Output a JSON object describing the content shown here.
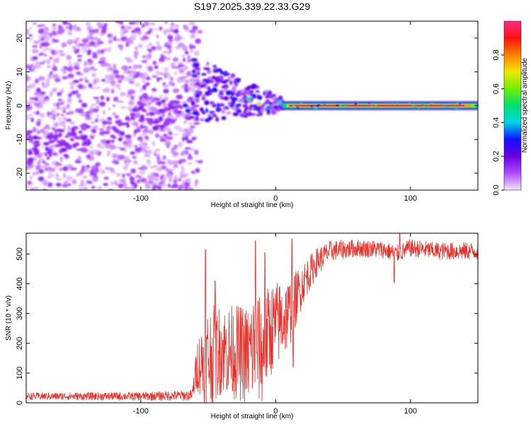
{
  "title": "S197.2025.339.22.33.G29",
  "chart_data": [
    {
      "type": "heatmap",
      "name": "spectrogram",
      "xlabel": "Height of straight line (km)",
      "ylabel": "Frequency (Hz)",
      "xlim": [
        -185,
        150
      ],
      "ylim": [
        -25,
        25
      ],
      "xticks": [
        -100,
        0,
        100
      ],
      "xtick_labels": [
        "-100",
        "0",
        "100"
      ],
      "yticks": [
        -20,
        -10,
        0,
        10,
        20
      ],
      "ytick_labels": [
        "-20",
        "-10",
        "0",
        "10",
        "20"
      ],
      "colorbar": {
        "label": "Normalized spectral amplitude",
        "range": [
          0,
          1
        ],
        "ticks": [
          0.0,
          0.2,
          0.4,
          0.6,
          0.8
        ],
        "tick_labels": [
          "0.0",
          "0.2",
          "0.4",
          "0.6",
          "0.8"
        ],
        "colors": [
          "#f2e6ff",
          "#b04cff",
          "#6a00e0",
          "#1010ff",
          "#00d6e6",
          "#00e070",
          "#6ef000",
          "#f0e800",
          "#ff8000",
          "#ff1010",
          "#ff2a8a"
        ]
      },
      "bands": [
        {
          "x_start": -185,
          "x_end": -62,
          "freq_spread": 25,
          "description": "broadband noise"
        },
        {
          "x_start": -62,
          "x_end": 5,
          "freq_spread": 10,
          "description": "transition"
        },
        {
          "x_start": 5,
          "x_end": 150,
          "center_freq": 0,
          "description": "strong signal line"
        }
      ]
    },
    {
      "type": "line",
      "name": "snr",
      "xlabel": "Height of straight line (km)",
      "ylabel": "SNR (10 * v/v)",
      "xlim": [
        -185,
        150
      ],
      "ylim": [
        0,
        570
      ],
      "xticks": [
        -100,
        0,
        100
      ],
      "xtick_labels": [
        "-100",
        "0",
        "100"
      ],
      "yticks": [
        0,
        100,
        200,
        300,
        400,
        500
      ],
      "ytick_labels": [
        "0",
        "100",
        "200",
        "300",
        "400",
        "500"
      ],
      "color": "#e8302a",
      "envelope": {
        "x": [
          -185,
          -100,
          -62,
          -58,
          -50,
          -40,
          -30,
          -20,
          -15,
          -10,
          -5,
          0,
          10,
          20,
          30,
          40,
          60,
          80,
          90,
          100,
          120,
          150
        ],
        "mean": [
          22,
          22,
          25,
          130,
          150,
          180,
          170,
          160,
          200,
          160,
          240,
          260,
          300,
          400,
          470,
          510,
          520,
          515,
          500,
          520,
          510,
          510
        ],
        "spread": [
          12,
          14,
          18,
          90,
          180,
          150,
          160,
          170,
          200,
          170,
          160,
          150,
          120,
          70,
          50,
          35,
          30,
          30,
          30,
          30,
          30,
          30
        ]
      },
      "spikes": [
        {
          "x": -52,
          "y": 515
        },
        {
          "x": -45,
          "y": 410
        },
        {
          "x": -15,
          "y": 545
        },
        {
          "x": -8,
          "y": 505
        },
        {
          "x": 12,
          "y": 550
        },
        {
          "x": 13,
          "y": 120
        },
        {
          "x": 88,
          "y": 405
        },
        {
          "x": 92,
          "y": 570
        }
      ]
    }
  ]
}
